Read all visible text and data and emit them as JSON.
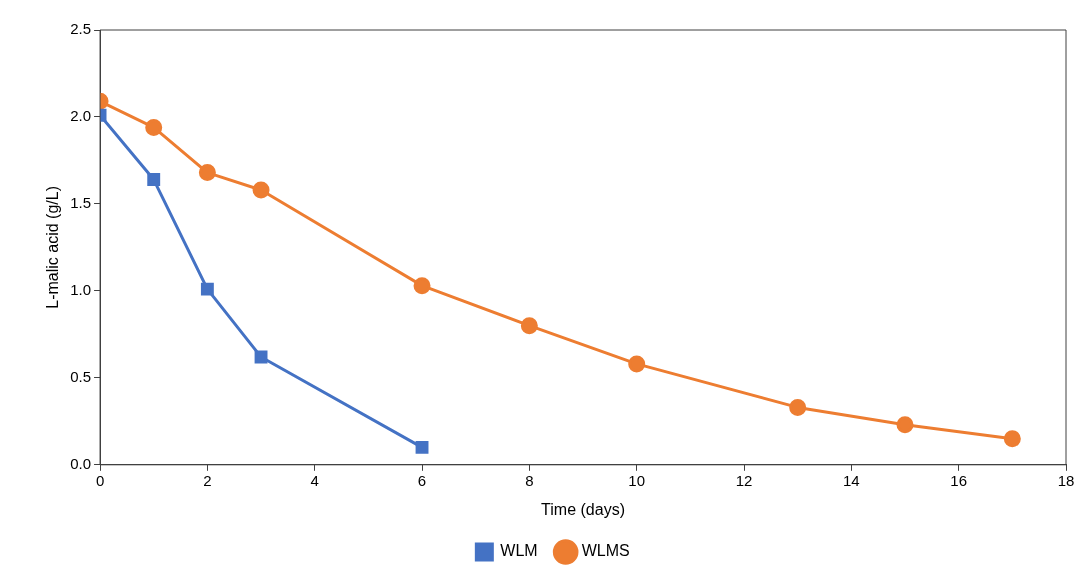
{
  "chart_data": {
    "type": "line",
    "xlabel": "Time (days)",
    "ylabel": "L-malic acid (g/L)",
    "xlim": [
      0,
      18
    ],
    "xticks": [
      0,
      2,
      4,
      6,
      8,
      10,
      12,
      14,
      16,
      18
    ],
    "ylim": [
      0,
      2.5
    ],
    "yticks": [
      {
        "value": 0,
        "label": "0.0"
      },
      0.5,
      {
        "value": 1,
        "label": "1.0"
      },
      1.5,
      {
        "value": 2,
        "label": "2.0"
      },
      2.5
    ],
    "grid": false,
    "legend": "bottom",
    "series": [
      {
        "name": "WLM",
        "color": "#4472c4",
        "marker": "square",
        "x": [
          0,
          1,
          2,
          3,
          6
        ],
        "values": [
          2.01,
          1.64,
          1.01,
          0.62,
          0.1
        ]
      },
      {
        "name": "WLMS",
        "color": "#ed7d31",
        "marker": "circle",
        "x": [
          0,
          1,
          2,
          3,
          6,
          8,
          10,
          13,
          15,
          17
        ],
        "values": [
          2.09,
          1.94,
          1.68,
          1.58,
          1.03,
          0.8,
          0.58,
          0.33,
          0.23,
          0.15
        ]
      }
    ]
  }
}
